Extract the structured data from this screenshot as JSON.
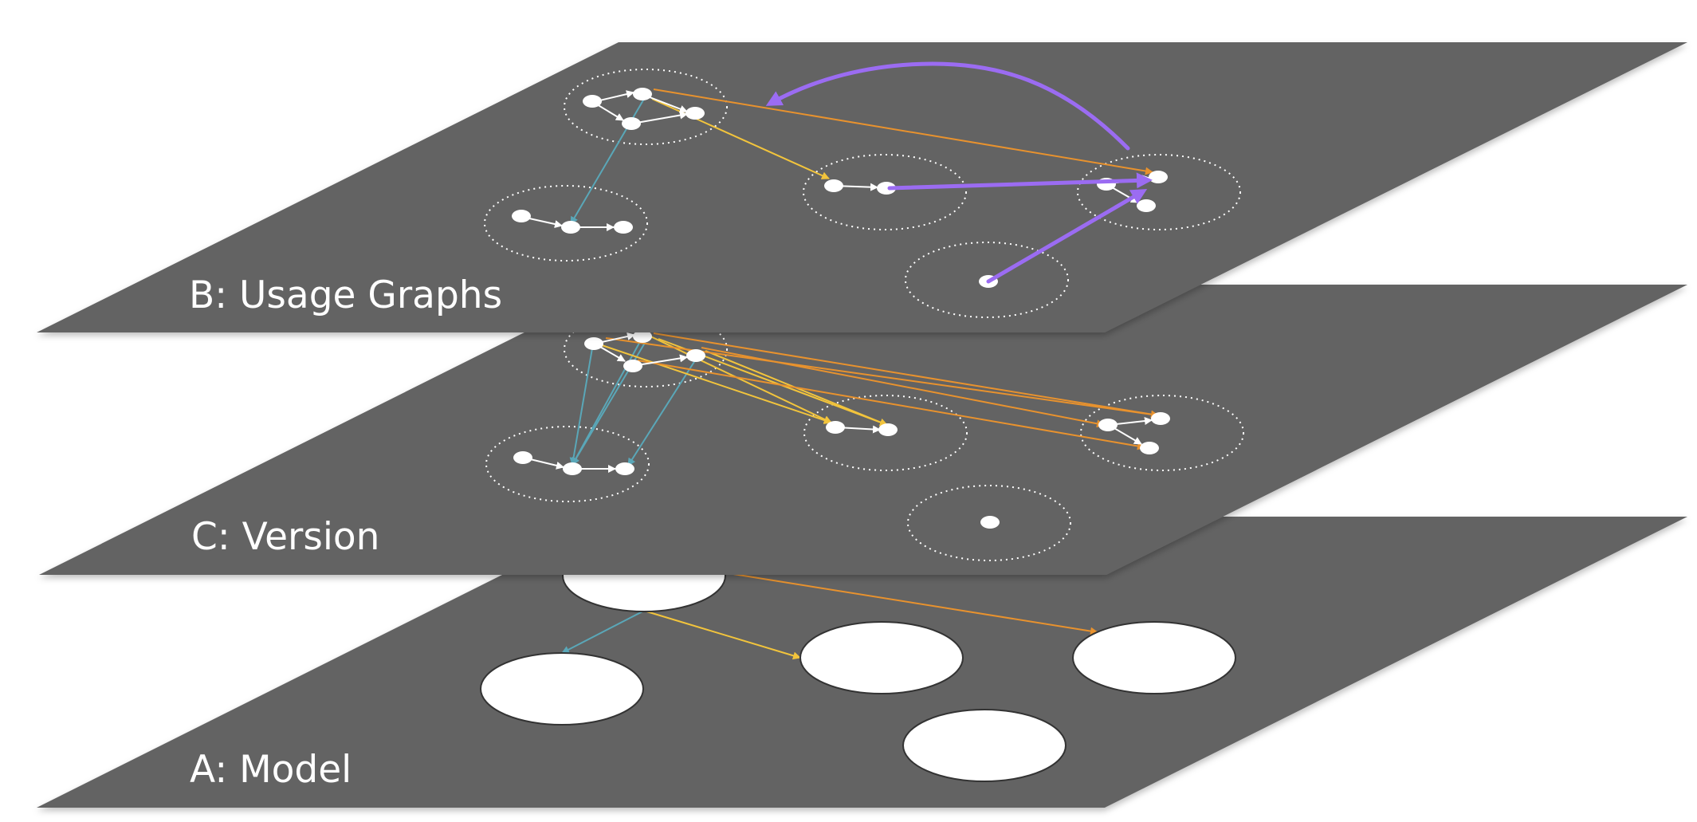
{
  "layers": [
    {
      "id": "model",
      "label": "A: Model"
    },
    {
      "id": "version",
      "label": "C: Version"
    },
    {
      "id": "usage",
      "label": "B: Usage Graphs"
    }
  ],
  "colors": {
    "plane": "#646464",
    "plane_shadow": "#c8c8c8",
    "node_fill": "#ffffff",
    "cluster_outline": "#ffffff",
    "edge_internal": "#ffffff",
    "edge_teal": "#5aa7b8",
    "edge_yellow": "#f2c43c",
    "edge_orange": "#e8922e",
    "edge_purple": "#9b6cf2"
  }
}
